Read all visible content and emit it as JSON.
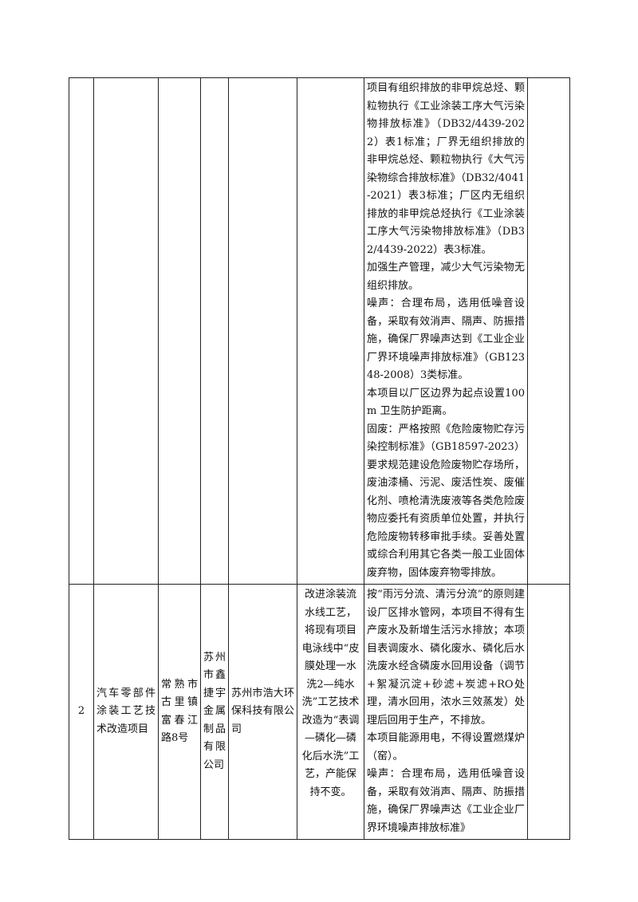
{
  "table": {
    "rows": [
      {
        "measures": [
          "项目有组织排放的非甲烷总烃、颗粒物执行《工业涂装工序大气污染物排放标准》（DB32/4439-2022）表1标准；厂界无组织排放的非甲烷总烃、颗粒物执行《大气污染物综合排放标准》（DB32/4041-2021）表3标准；厂区内无组织排放的非甲烷总烃执行《工业涂装工序大气污染物排放标准》（DB32/4439-2022）表3标准。",
          "加强生产管理，减少大气污染物无组织排放。",
          "噪声：合理布局，选用低噪音设备，采取有效消声、隔声、防振措施，确保厂界噪声达到《工业企业厂界环境噪声排放标准》（GB12348-2008）3类标准。",
          "本项目以厂区边界为起点设置100m 卫生防护距离。",
          "固废：严格按照《危险废物贮存污染控制标准》（GB18597-2023）要求规范建设危险废物贮存场所，废油漆桶、污泥、废活性炭、废催化剂、喷枪清洗废液等各类危险废物应委托有资质单位处置，并执行危险废物转移审批手续。妥善处置或综合利用其它各类一般工业固体废弃物，固体废弃物零排放。"
        ]
      },
      {
        "no": "2",
        "project": "汽车零部件涂装工艺技术改造项目",
        "address": "常熟市古里镇富春江路8号",
        "company": "苏州市鑫捷宇金属制品有限公司",
        "evaluator": "苏州市浩大环保科技有限公司",
        "content": "改进涂装流水线工艺，将现有项目电泳线中“皮膜处理一水洗2—纯水洗”工艺技术改造为“表调—磷化—磷化后水洗”工艺，产能保持不变。",
        "measures": [
          "按“雨污分流、清污分流”的原则建设厂区排水管网，本项目不得有生产废水及新增生活污水排放；本项目表调废水、磷化废水、磷化后水洗废水经含磷废水回用设备（调节+絮凝沉淀+砂滤+炭滤+RO处理，清水回用，浓水三效蒸发）处理后回用于生产，不排放。",
          "本项目能源用电，不得设置燃煤炉（窑）。",
          "噪声：合理布局，选用低噪音设备，采取有效消声、隔声、防振措施，确保厂界噪声达《工业企业厂界环境噪声排放标准》"
        ]
      }
    ]
  }
}
